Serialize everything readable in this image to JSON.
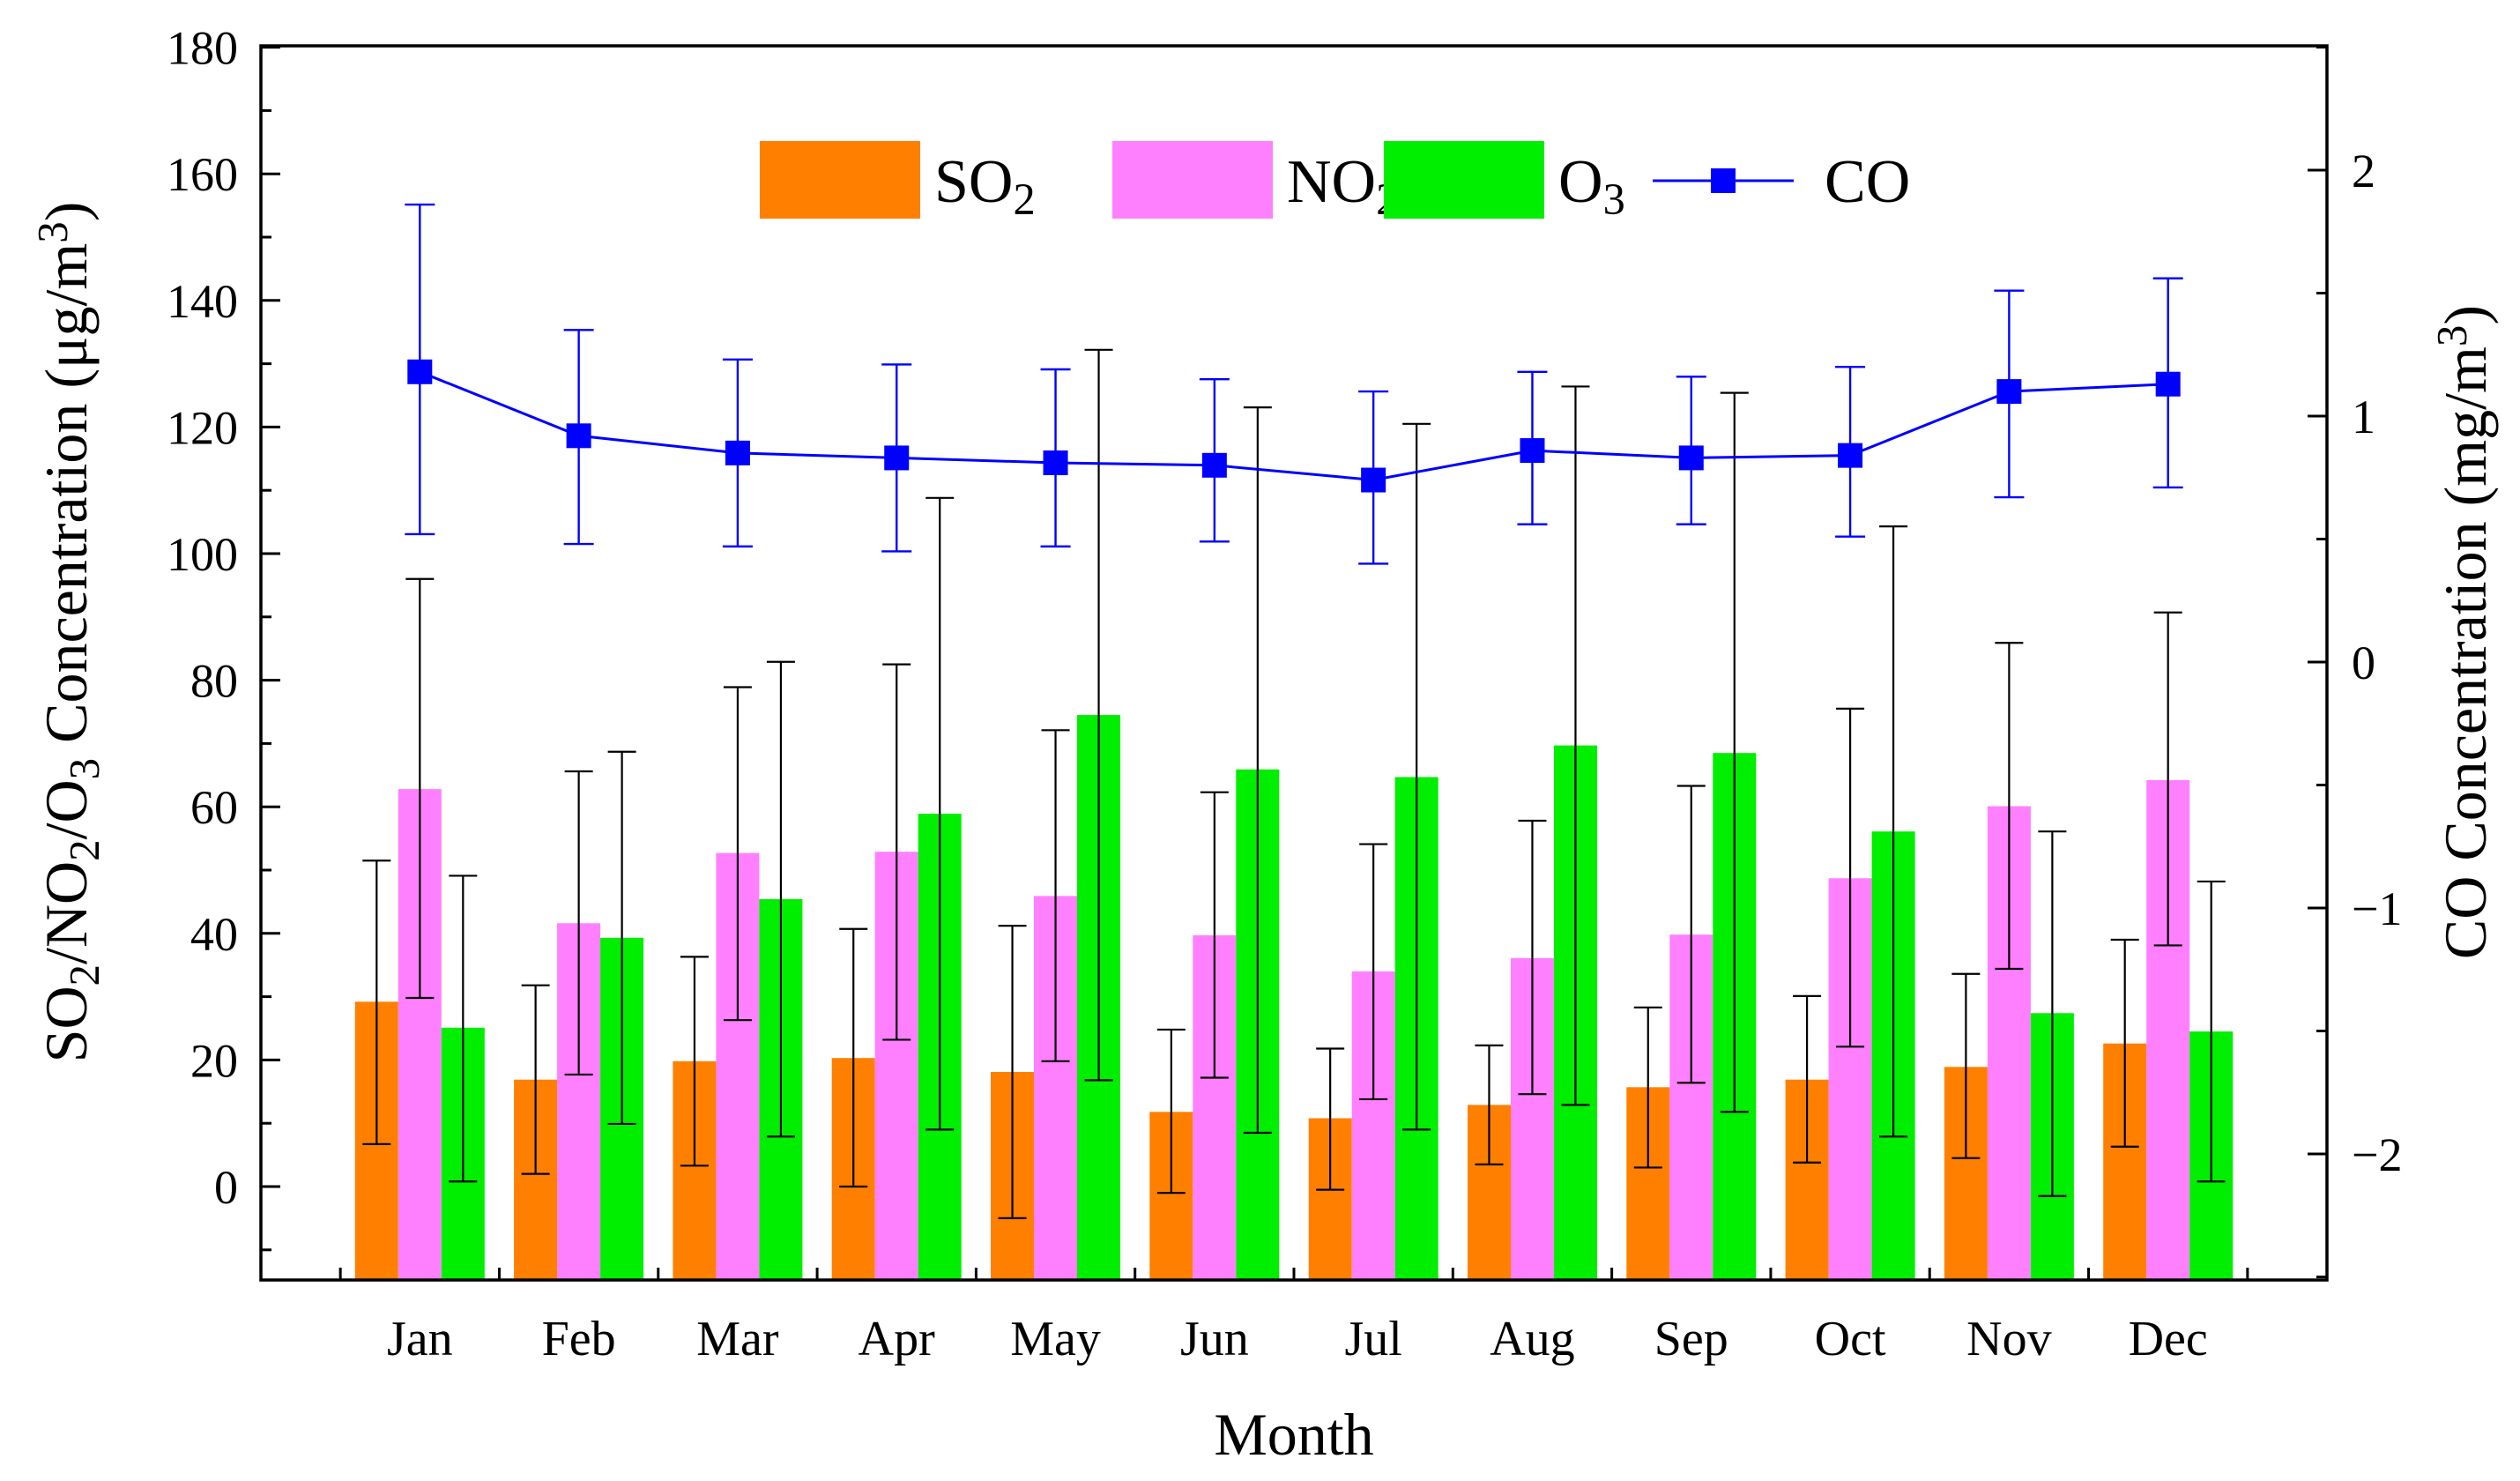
{
  "chart_data": {
    "type": "bar",
    "xlabel": "Month",
    "categories": [
      "Jan",
      "Feb",
      "Mar",
      "Apr",
      "May",
      "Jun",
      "Jul",
      "Aug",
      "Sep",
      "Oct",
      "Nov",
      "Dec"
    ],
    "left_axis": {
      "label_parts": [
        {
          "text": "SO",
          "sub": false
        },
        {
          "text": "2",
          "sub": true
        },
        {
          "text": "/NO",
          "sub": false
        },
        {
          "text": "2",
          "sub": true
        },
        {
          "text": "/O",
          "sub": false
        },
        {
          "text": "3",
          "sub": true
        },
        {
          "text": " Concentration (μg/m",
          "sub": false
        },
        {
          "text": "3",
          "sup": true
        },
        {
          "text": ")",
          "sub": false
        }
      ],
      "ylim": [
        -15,
        180
      ],
      "ticks": [
        0,
        20,
        40,
        60,
        80,
        100,
        120,
        140,
        160,
        180
      ]
    },
    "right_axis": {
      "label_parts": [
        {
          "text": "CO Concentration (mg/m",
          "sub": false
        },
        {
          "text": "3",
          "sup": true
        },
        {
          "text": ")",
          "sub": false
        }
      ],
      "ylim": [
        -2.5,
        2.5
      ],
      "ticks": [
        -2,
        -1,
        0,
        1,
        2
      ],
      "tick_labels": [
        "−2",
        "−1",
        "0",
        "1",
        "2"
      ]
    },
    "series": [
      {
        "name": "SO2",
        "label": "SO",
        "sub": "2",
        "kind": "bar",
        "color": "#ff8000",
        "values": [
          29.2,
          16.9,
          19.8,
          20.3,
          18.1,
          11.8,
          10.8,
          12.9,
          15.7,
          16.9,
          18.9,
          22.6
        ],
        "err_low": [
          6.7,
          2.0,
          3.3,
          0.0,
          -5.0,
          -1.0,
          -0.5,
          3.5,
          3.0,
          3.8,
          4.5,
          6.3
        ],
        "err_high": [
          51.5,
          31.8,
          36.3,
          40.7,
          41.2,
          24.8,
          21.8,
          22.3,
          28.3,
          30.1,
          33.6,
          39.0
        ]
      },
      {
        "name": "NO2",
        "label": "NO",
        "sub": "2",
        "kind": "bar",
        "color": "#ff80ff",
        "values": [
          62.8,
          41.6,
          52.7,
          52.9,
          45.9,
          39.7,
          34.0,
          36.1,
          39.8,
          48.7,
          60.1,
          64.2
        ],
        "err_low": [
          29.8,
          17.7,
          26.3,
          23.2,
          19.8,
          17.2,
          13.8,
          14.6,
          16.4,
          22.1,
          34.4,
          38.1
        ],
        "err_high": [
          96.0,
          65.6,
          78.9,
          82.5,
          72.1,
          62.3,
          54.1,
          57.8,
          63.3,
          75.5,
          85.9,
          90.7
        ]
      },
      {
        "name": "O3",
        "label": "O",
        "sub": "3",
        "kind": "bar",
        "color": "#00ee00",
        "values": [
          25.1,
          39.3,
          45.4,
          58.9,
          74.5,
          65.9,
          64.7,
          69.7,
          68.5,
          56.1,
          27.4,
          24.5
        ],
        "err_low": [
          0.8,
          9.9,
          7.9,
          9.0,
          16.8,
          8.5,
          9.0,
          12.9,
          11.8,
          7.9,
          -1.5,
          0.8
        ],
        "err_high": [
          49.1,
          68.7,
          82.9,
          108.8,
          132.2,
          123.1,
          120.5,
          126.4,
          125.4,
          104.3,
          56.1,
          48.2
        ]
      },
      {
        "name": "CO",
        "label": "CO",
        "kind": "line",
        "axis": "right",
        "color": "#0000ff",
        "marker": "square",
        "values": [
          1.18,
          0.92,
          0.85,
          0.83,
          0.81,
          0.8,
          0.74,
          0.86,
          0.83,
          0.84,
          1.1,
          1.13
        ],
        "err_low": [
          0.52,
          0.48,
          0.47,
          0.45,
          0.47,
          0.49,
          0.4,
          0.56,
          0.56,
          0.51,
          0.67,
          0.71
        ],
        "err_high": [
          1.86,
          1.35,
          1.23,
          1.21,
          1.19,
          1.15,
          1.1,
          1.18,
          1.16,
          1.2,
          1.51,
          1.56
        ]
      }
    ],
    "legend_position": "top-center"
  }
}
